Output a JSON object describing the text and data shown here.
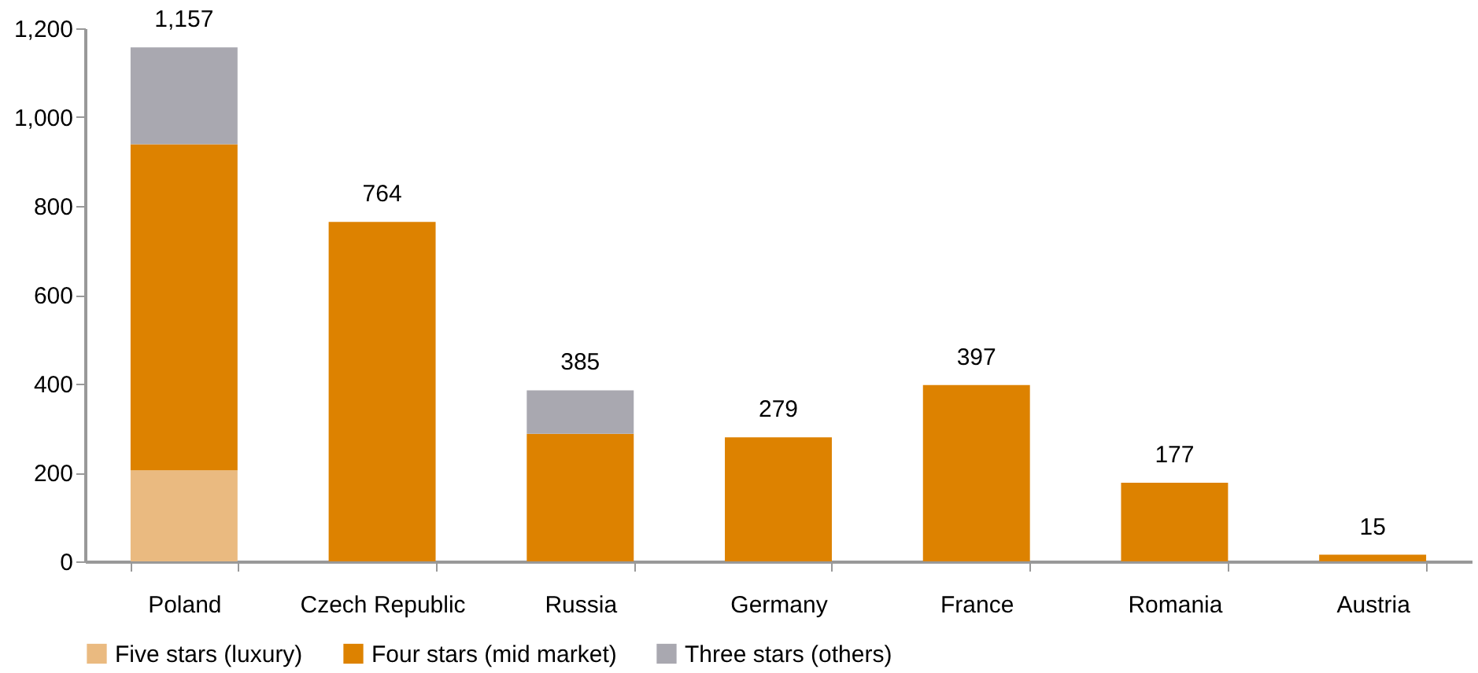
{
  "chart_data": {
    "type": "bar",
    "stacked": true,
    "categories": [
      "Poland",
      "Czech Republic",
      "Russia",
      "Germany",
      "France",
      "Romania",
      "Austria"
    ],
    "series": [
      {
        "name": "Five stars (luxury)",
        "color": "#eaba80",
        "values": [
          205,
          null,
          null,
          null,
          null,
          null,
          null
        ]
      },
      {
        "name": "Four stars (mid market)",
        "color": "#dd8200",
        "values": [
          734,
          764,
          287,
          279,
          397,
          177,
          15
        ]
      },
      {
        "name": "Three stars (others)",
        "color": "#a9a8b0",
        "values": [
          218,
          null,
          98,
          null,
          null,
          null,
          null
        ]
      }
    ],
    "totals": [
      "1,157",
      "764",
      "385",
      "279",
      "397",
      "177",
      "15"
    ],
    "ylim": [
      0,
      1200
    ],
    "yticks": [
      {
        "value": 0,
        "label": "0"
      },
      {
        "value": 200,
        "label": "200"
      },
      {
        "value": 400,
        "label": "400"
      },
      {
        "value": 600,
        "label": "600"
      },
      {
        "value": 800,
        "label": "800"
      },
      {
        "value": 1000,
        "label": "1,000"
      },
      {
        "value": 1200,
        "label": "1,200"
      }
    ],
    "grid": false,
    "legend": "bottom"
  }
}
